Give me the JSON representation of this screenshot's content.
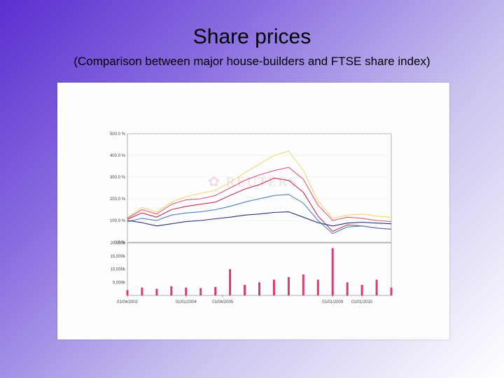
{
  "slide": {
    "title": "Share prices",
    "subtitle": "(Comparison between major house-builders and FTSE share index)"
  },
  "colors": {
    "yellow": "#f0d870",
    "pink": "#e05a78",
    "red": "#c23050",
    "blue": "#4a7fc0",
    "navy": "#2a2f78",
    "volume": "#d83c6a"
  },
  "chart_data": [
    {
      "type": "line",
      "title": "",
      "xlabel": "",
      "ylabel": "",
      "ylim": [
        0,
        500
      ],
      "y_ticks": [
        "500.0 %",
        "400.0 %",
        "300.0 %",
        "200.0 %",
        "100.0 %",
        "0.0 %"
      ],
      "y_tick_values": [
        500,
        400,
        300,
        200,
        100,
        0
      ],
      "x": [
        2002.0,
        2002.5,
        2003.0,
        2003.5,
        2004.0,
        2004.5,
        2005.0,
        2005.5,
        2006.0,
        2006.5,
        2007.0,
        2007.5,
        2008.0,
        2008.5,
        2009.0,
        2009.5,
        2010.0,
        2010.5,
        2011.0
      ],
      "x_ticks": [
        "01/04/2002",
        "01/01/2004",
        "01/04/2005",
        "01/01/2009",
        "01/01/2010"
      ],
      "x_tick_values": [
        2002.0,
        2004.0,
        2005.25,
        2009.0,
        2010.0
      ],
      "xlim": [
        2002.0,
        2011.0
      ],
      "series": [
        {
          "color_key": "yellow",
          "values": [
            115,
            160,
            140,
            185,
            210,
            225,
            240,
            275,
            320,
            360,
            400,
            420,
            330,
            190,
            110,
            125,
            130,
            120,
            115
          ]
        },
        {
          "color_key": "pink",
          "values": [
            110,
            150,
            130,
            175,
            195,
            200,
            215,
            250,
            285,
            310,
            330,
            345,
            290,
            170,
            100,
            115,
            110,
            100,
            95
          ]
        },
        {
          "color_key": "red",
          "values": [
            105,
            135,
            115,
            150,
            165,
            175,
            185,
            215,
            245,
            265,
            295,
            285,
            230,
            120,
            50,
            80,
            75,
            65,
            60
          ]
        },
        {
          "color_key": "blue",
          "values": [
            95,
            110,
            100,
            125,
            135,
            140,
            150,
            165,
            185,
            200,
            215,
            220,
            180,
            100,
            40,
            70,
            75,
            65,
            60
          ]
        },
        {
          "color_key": "navy",
          "values": [
            100,
            90,
            75,
            85,
            95,
            100,
            108,
            115,
            125,
            130,
            137,
            140,
            115,
            90,
            75,
            88,
            92,
            88,
            85
          ]
        }
      ]
    },
    {
      "type": "bar",
      "title": "",
      "xlabel": "",
      "ylabel": "",
      "ylim": [
        0,
        20000
      ],
      "y_ticks": [
        "20,000k",
        "15,000k",
        "10,000k",
        "5,000k"
      ],
      "y_tick_values": [
        20000,
        15000,
        10000,
        5000
      ],
      "x": [
        2002.0,
        2002.5,
        2003.0,
        2003.5,
        2004.0,
        2004.5,
        2005.0,
        2005.5,
        2006.0,
        2006.5,
        2007.0,
        2007.5,
        2008.0,
        2008.5,
        2009.0,
        2009.5,
        2010.0,
        2010.5,
        2011.0
      ],
      "xlim": [
        2002.0,
        2011.0
      ],
      "values": [
        2000,
        3000,
        2500,
        3500,
        3000,
        2800,
        3200,
        10000,
        4000,
        5000,
        6000,
        7000,
        8000,
        6000,
        18000,
        5000,
        4000,
        6000,
        3000
      ],
      "color_key": "volume"
    }
  ]
}
